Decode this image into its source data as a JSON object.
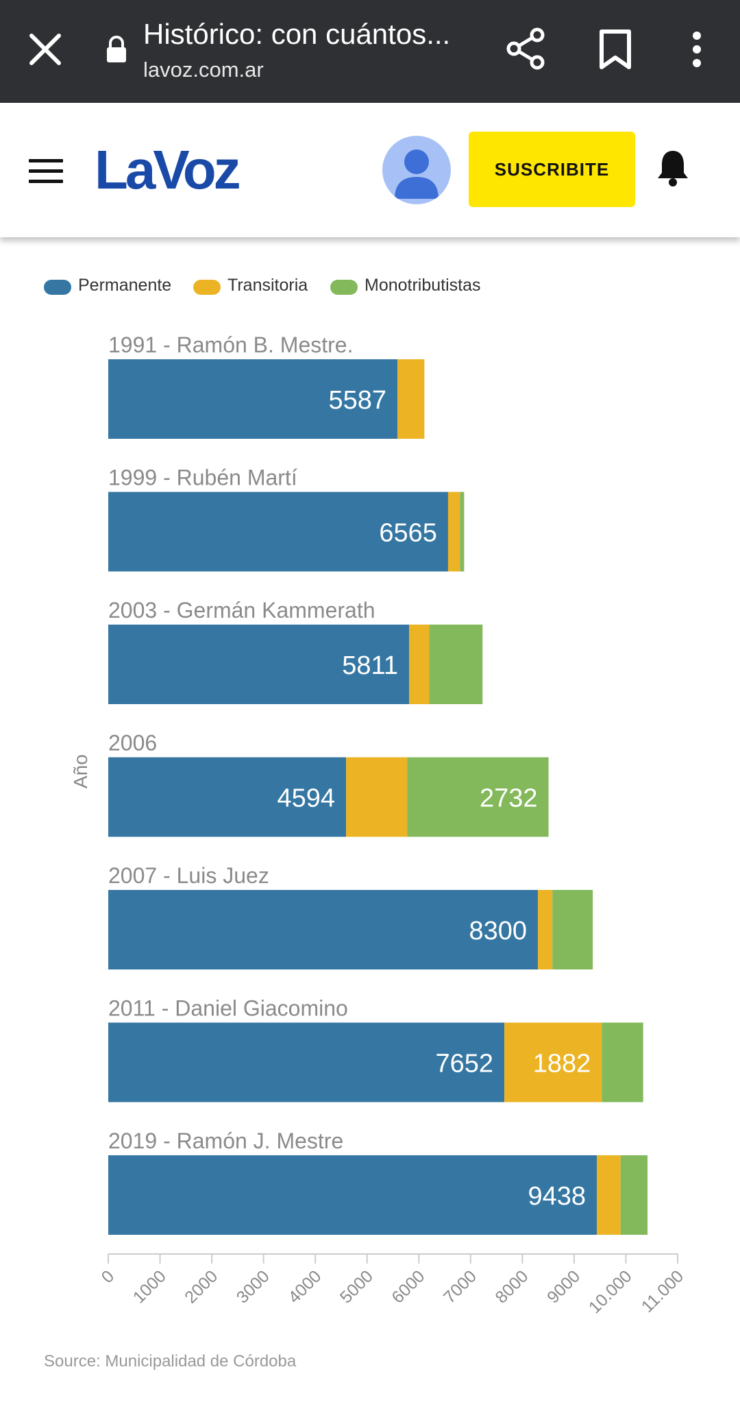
{
  "browser": {
    "title": "Histórico: con cuántos...",
    "url": "lavoz.com.ar",
    "icons": [
      "close-icon",
      "lock-icon",
      "share-icon",
      "bookmark-icon",
      "more-vert-icon"
    ]
  },
  "header": {
    "logo": "LaVoz",
    "subscribe_label": "SUSCRIBITE",
    "icons": [
      "menu-icon",
      "avatar-icon",
      "bell-icon"
    ],
    "colors": {
      "logo": "#1a4aa8",
      "subscribe": "#ffe600"
    }
  },
  "legend": [
    {
      "label": "Permanente",
      "color": "#3577a2"
    },
    {
      "label": "Transitoria",
      "color": "#ecb324"
    },
    {
      "label": "Monotributistas",
      "color": "#83b95a"
    }
  ],
  "chart_data": {
    "type": "bar",
    "orientation": "horizontal",
    "stacked": true,
    "ylabel": "Año",
    "xlim": [
      0,
      11000
    ],
    "x_ticks": [
      "0",
      "1000",
      "2000",
      "3000",
      "4000",
      "5000",
      "6000",
      "7000",
      "8000",
      "9000",
      "10.000",
      "11.000"
    ],
    "categories": [
      "1991 - Ramón B. Mestre.",
      "1999 - Rubén Martí",
      "2003 - Germán Kammerath",
      "2006",
      "2007 - Luis Juez",
      "2011 - Daniel Giacomino",
      "2019 - Ramón J. Mestre"
    ],
    "series": [
      {
        "name": "Permanente",
        "color": "#3577a2",
        "values": [
          5587,
          6565,
          5811,
          4594,
          8300,
          7652,
          9438
        ],
        "labels": [
          "5587",
          "6565",
          "5811",
          "4594",
          "8300",
          "7652",
          "9438"
        ]
      },
      {
        "name": "Transitoria",
        "color": "#ecb324",
        "values": [
          520,
          230,
          390,
          1180,
          280,
          1882,
          460
        ],
        "labels": [
          "",
          "",
          "",
          "",
          "",
          "1882",
          ""
        ]
      },
      {
        "name": "Monotributistas",
        "color": "#83b95a",
        "values": [
          0,
          80,
          1030,
          2732,
          780,
          800,
          520
        ],
        "labels": [
          "",
          "",
          "",
          "2732",
          "",
          "",
          ""
        ]
      }
    ]
  },
  "source": "Source: Municipalidad de Córdoba"
}
